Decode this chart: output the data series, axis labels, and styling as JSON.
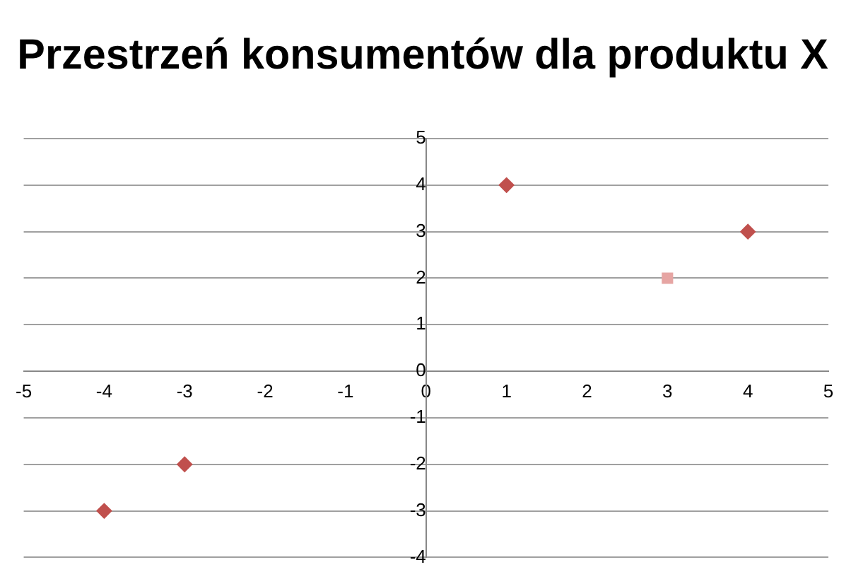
{
  "chart_data": {
    "type": "scatter",
    "title": "Przestrzeń konsumentów dla produktu X",
    "series": [
      {
        "color": "#c0504d",
        "marker": "diamond",
        "x": [
          1,
          4,
          -3,
          -4
        ],
        "values": [
          4,
          3,
          -2,
          -3
        ]
      },
      {
        "color": "#e6a5a3",
        "marker": "square",
        "x": [
          3
        ],
        "values": [
          2
        ]
      }
    ],
    "xlim": [
      -5,
      5
    ],
    "xticks": [
      -5,
      -4,
      -3,
      -2,
      -1,
      0,
      1,
      2,
      3,
      4,
      5
    ],
    "ylim": [
      -4,
      5
    ],
    "yticks": [
      -4,
      -3,
      -2,
      -1,
      0,
      1,
      2,
      3,
      4,
      5
    ],
    "grid": "y",
    "legend": false
  }
}
